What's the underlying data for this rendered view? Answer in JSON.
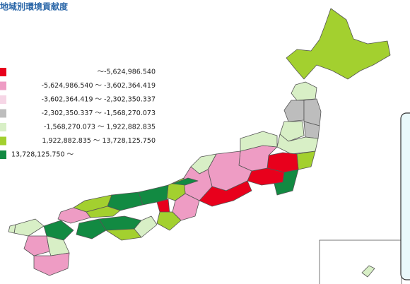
{
  "title": "地域別環境貢献度",
  "legend": [
    {
      "label": "～-5,624,986.540",
      "color": "#e8001c"
    },
    {
      "label": "-5,624,986.540 ～ -3,602,364.419",
      "color": "#ee9cc4"
    },
    {
      "label": "-3,602,364.419 ～ -2,302,350.337",
      "color": "#f6d6e6"
    },
    {
      "label": "-2,302,350.337 ～ -1,568,270.073",
      "color": "#bdbdbd"
    },
    {
      "label": "-1,568,270.073 ～ 1,922,882.835",
      "color": "#d8efc6"
    },
    {
      "label": "1,922,882.835 ～ 13,728,125.750",
      "color": "#a3d02f"
    },
    {
      "label": "13,728,125.750 ～",
      "color": "#128a42"
    }
  ]
}
